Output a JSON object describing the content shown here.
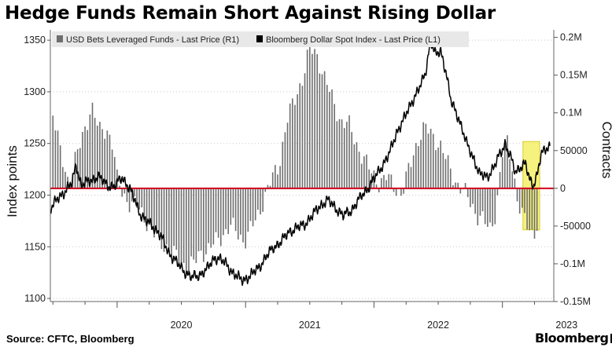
{
  "title": "Hedge Funds Remain Short Against Rising Dollar",
  "source": "Source: CFTC, Bloomberg",
  "brand": "Bloomberg",
  "colors": {
    "bars": "#6e6e6e",
    "line": "#000000",
    "zero_line": "#d0021b",
    "highlight": "#f5f06a",
    "highlight_border": "#d6cc2a",
    "legend_bg": "#e8e8e8"
  },
  "chart_data": {
    "type": "bar+line",
    "legend": [
      {
        "label": "USD Bets Leveraged Funds - Last Price (R1)",
        "marker": "square",
        "color": "#6e6e6e"
      },
      {
        "label": "Bloomberg Dollar Spot Index - Last Price (L1)",
        "marker": "square",
        "color": "#000000"
      }
    ],
    "legend_position": "top",
    "left_axis": {
      "label": "Index points",
      "ylim": [
        1097,
        1360
      ],
      "ticks": [
        1100,
        1150,
        1200,
        1250,
        1300,
        1350
      ]
    },
    "right_axis": {
      "label": "Contracts",
      "ylim": [
        -150000,
        210000
      ],
      "ticks": [
        200000,
        150000,
        100000,
        50000,
        0,
        -50000,
        -100000,
        -150000
      ],
      "tick_labels": [
        "0.2M",
        "0.15M",
        "0.1M",
        "50000",
        "0",
        "-50000",
        "-0.1M",
        "-0.15M"
      ]
    },
    "x_axis": {
      "range": [
        2019.48,
        2023.4
      ],
      "ticks": [
        2020,
        2021,
        2022,
        2023
      ],
      "tick_labels": [
        "2020",
        "2021",
        "2022",
        "2023"
      ]
    },
    "zero_reference_line": true,
    "highlight_region": {
      "x": [
        2023.16,
        2023.29
      ],
      "y_right": [
        -55000,
        62000
      ]
    },
    "bar_series": {
      "name": "USD Bets Leveraged Funds - Last Price (R1)",
      "axis": "right",
      "points": [
        [
          2019.5,
          100000
        ],
        [
          2019.56,
          45000
        ],
        [
          2019.62,
          10000
        ],
        [
          2019.7,
          50000
        ],
        [
          2019.8,
          110000
        ],
        [
          2019.86,
          75000
        ],
        [
          2019.92,
          80000
        ],
        [
          2019.97,
          55000
        ],
        [
          2020.0,
          10000
        ],
        [
          2020.05,
          -8000
        ],
        [
          2020.1,
          -20000
        ],
        [
          2020.16,
          -25000
        ],
        [
          2020.22,
          -40000
        ],
        [
          2020.3,
          -65000
        ],
        [
          2020.4,
          -80000
        ],
        [
          2020.48,
          -95000
        ],
        [
          2020.54,
          -105000
        ],
        [
          2020.6,
          -100000
        ],
        [
          2020.65,
          -85000
        ],
        [
          2020.72,
          -80000
        ],
        [
          2020.8,
          -65000
        ],
        [
          2020.88,
          -50000
        ],
        [
          2020.94,
          -60000
        ],
        [
          2020.99,
          -70000
        ],
        [
          2021.04,
          -55000
        ],
        [
          2021.1,
          -35000
        ],
        [
          2021.15,
          -10000
        ],
        [
          2021.2,
          10000
        ],
        [
          2021.26,
          30000
        ],
        [
          2021.32,
          90000
        ],
        [
          2021.38,
          115000
        ],
        [
          2021.44,
          145000
        ],
        [
          2021.5,
          185000
        ],
        [
          2021.56,
          175000
        ],
        [
          2021.62,
          145000
        ],
        [
          2021.68,
          115000
        ],
        [
          2021.74,
          90000
        ],
        [
          2021.8,
          85000
        ],
        [
          2021.86,
          60000
        ],
        [
          2021.92,
          40000
        ],
        [
          2021.98,
          20000
        ],
        [
          2022.04,
          8000
        ],
        [
          2022.1,
          15000
        ],
        [
          2022.16,
          2000
        ],
        [
          2022.22,
          -8000
        ],
        [
          2022.28,
          30000
        ],
        [
          2022.34,
          65000
        ],
        [
          2022.4,
          80000
        ],
        [
          2022.46,
          70000
        ],
        [
          2022.52,
          55000
        ],
        [
          2022.58,
          30000
        ],
        [
          2022.64,
          8000
        ],
        [
          2022.7,
          -5000
        ],
        [
          2022.76,
          -20000
        ],
        [
          2022.8,
          -35000
        ],
        [
          2022.86,
          -45000
        ],
        [
          2022.9,
          -55000
        ],
        [
          2022.95,
          -30000
        ],
        [
          2023.0,
          45000
        ],
        [
          2023.04,
          60000
        ],
        [
          2023.08,
          30000
        ],
        [
          2023.12,
          -20000
        ],
        [
          2023.16,
          -40000
        ],
        [
          2023.2,
          -50000
        ],
        [
          2023.24,
          -60000
        ],
        [
          2023.28,
          -45000
        ]
      ]
    },
    "line_series": {
      "name": "Bloomberg Dollar Spot Index - Last Price (L1)",
      "axis": "left",
      "points": [
        [
          2019.48,
          1187
        ],
        [
          2019.55,
          1198
        ],
        [
          2019.6,
          1205
        ],
        [
          2019.65,
          1212
        ],
        [
          2019.68,
          1230
        ],
        [
          2019.72,
          1210
        ],
        [
          2019.78,
          1213
        ],
        [
          2019.85,
          1218
        ],
        [
          2019.92,
          1210
        ],
        [
          2019.98,
          1208
        ],
        [
          2020.04,
          1218
        ],
        [
          2020.1,
          1205
        ],
        [
          2020.14,
          1195
        ],
        [
          2020.18,
          1182
        ],
        [
          2020.22,
          1175
        ],
        [
          2020.28,
          1170
        ],
        [
          2020.34,
          1160
        ],
        [
          2020.4,
          1145
        ],
        [
          2020.46,
          1135
        ],
        [
          2020.52,
          1127
        ],
        [
          2020.58,
          1120
        ],
        [
          2020.64,
          1123
        ],
        [
          2020.7,
          1128
        ],
        [
          2020.76,
          1140
        ],
        [
          2020.8,
          1138
        ],
        [
          2020.86,
          1132
        ],
        [
          2020.9,
          1125
        ],
        [
          2020.94,
          1120
        ],
        [
          2020.98,
          1118
        ],
        [
          2021.04,
          1122
        ],
        [
          2021.1,
          1130
        ],
        [
          2021.16,
          1140
        ],
        [
          2021.22,
          1150
        ],
        [
          2021.28,
          1155
        ],
        [
          2021.34,
          1165
        ],
        [
          2021.4,
          1168
        ],
        [
          2021.46,
          1172
        ],
        [
          2021.52,
          1180
        ],
        [
          2021.58,
          1190
        ],
        [
          2021.64,
          1195
        ],
        [
          2021.7,
          1188
        ],
        [
          2021.76,
          1180
        ],
        [
          2021.82,
          1185
        ],
        [
          2021.88,
          1195
        ],
        [
          2021.94,
          1205
        ],
        [
          2022.0,
          1215
        ],
        [
          2022.06,
          1228
        ],
        [
          2022.12,
          1240
        ],
        [
          2022.18,
          1262
        ],
        [
          2022.24,
          1275
        ],
        [
          2022.3,
          1292
        ],
        [
          2022.36,
          1305
        ],
        [
          2022.4,
          1318
        ],
        [
          2022.44,
          1350
        ],
        [
          2022.48,
          1335
        ],
        [
          2022.52,
          1340
        ],
        [
          2022.56,
          1320
        ],
        [
          2022.6,
          1290
        ],
        [
          2022.66,
          1275
        ],
        [
          2022.72,
          1250
        ],
        [
          2022.78,
          1235
        ],
        [
          2022.82,
          1220
        ],
        [
          2022.88,
          1218
        ],
        [
          2022.94,
          1228
        ],
        [
          2022.98,
          1240
        ],
        [
          2023.02,
          1250
        ],
        [
          2023.06,
          1238
        ],
        [
          2023.1,
          1222
        ],
        [
          2023.14,
          1228
        ],
        [
          2023.18,
          1230
        ],
        [
          2023.21,
          1215
        ],
        [
          2023.24,
          1210
        ],
        [
          2023.27,
          1220
        ],
        [
          2023.3,
          1238
        ],
        [
          2023.34,
          1245
        ],
        [
          2023.37,
          1248
        ]
      ]
    }
  }
}
